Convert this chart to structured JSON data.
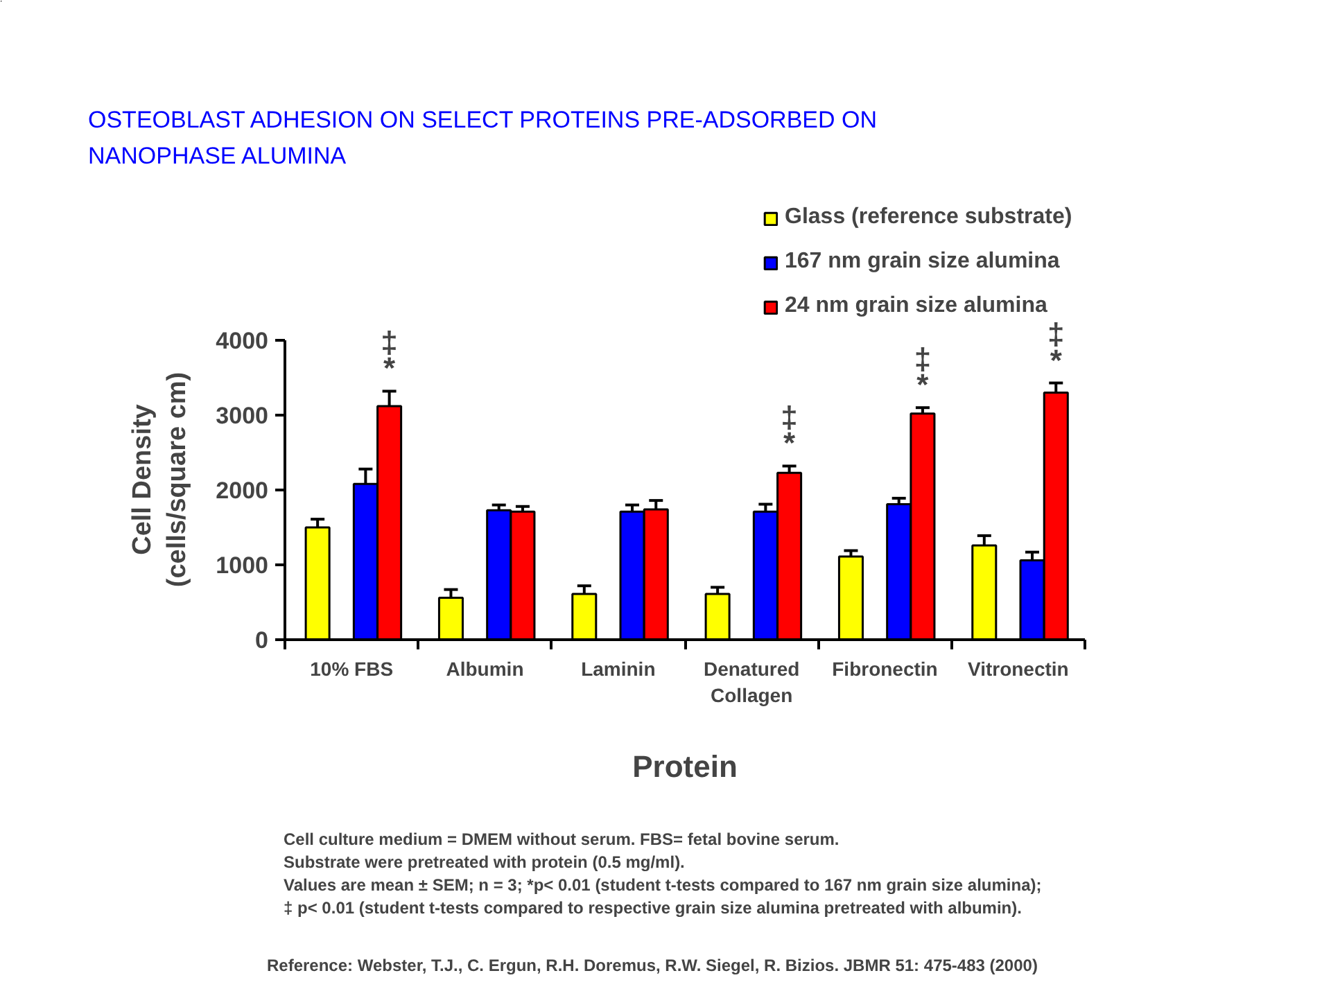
{
  "chart_data": {
    "type": "bar",
    "title": "OSTEOBLAST ADHESION ON SELECT PROTEINS PRE-ADSORBED ON NANOPHASE ALUMINA",
    "xlabel": "Protein",
    "ylabel": "Cell Density (cells/square cm)",
    "categories": [
      "10% FBS",
      "Albumin",
      "Laminin",
      "Denatured Collagen",
      "Fibronectin",
      "Vitronectin"
    ],
    "series": [
      {
        "name": "Glass (reference substrate)",
        "color": "#ffff00",
        "values": [
          1500,
          560,
          610,
          610,
          1110,
          1260
        ],
        "errors": [
          [
            1500,
            1610
          ],
          [
            560,
            670
          ],
          [
            610,
            720
          ],
          [
            610,
            700
          ],
          [
            1110,
            1190
          ],
          [
            1260,
            1390
          ]
        ]
      },
      {
        "name": "167 nm grain size alumina",
        "color": "#0000ff",
        "values": [
          2080,
          1730,
          1710,
          1710,
          1810,
          1060
        ],
        "errors": [
          [
            2080,
            2280
          ],
          [
            1730,
            1800
          ],
          [
            1710,
            1800
          ],
          [
            1710,
            1810
          ],
          [
            1810,
            1890
          ],
          [
            1060,
            1170
          ]
        ]
      },
      {
        "name": "24 nm grain size alumina",
        "color": "#ff0000",
        "values": [
          3120,
          1710,
          1740,
          2230,
          3020,
          3300
        ],
        "errors": [
          [
            3120,
            3320
          ],
          [
            1710,
            1780
          ],
          [
            1740,
            1860
          ],
          [
            2230,
            2320
          ],
          [
            3020,
            3100
          ],
          [
            3300,
            3430
          ]
        ],
        "value_labels": [
          "‡\n*",
          null,
          null,
          "‡\n*",
          "‡\n*",
          "‡\n*"
        ]
      }
    ],
    "ylim": [
      0,
      4000
    ],
    "yticks": [
      0,
      1000,
      2000,
      3000,
      4000
    ],
    "grid": false,
    "legend": "top right",
    "annotations": [
      "Cell culture medium = DMEM without serum.  FBS= fetal bovine serum.",
      "Substrate were pretreated with protein (0.5 mg/ml).",
      "Values are mean ± SEM; n = 3; *p< 0.01 (student t-tests compared to 167 nm grain size alumina);",
      "‡ p< 0.01 (student t-tests compared to respective grain size alumina pretreated with albumin).",
      "Reference: Webster, T.J., C. Ergun, R.H. Doremus, R.W. Siegel, R. Bizios. JBMR 51: 475-483 (2000)"
    ]
  }
}
